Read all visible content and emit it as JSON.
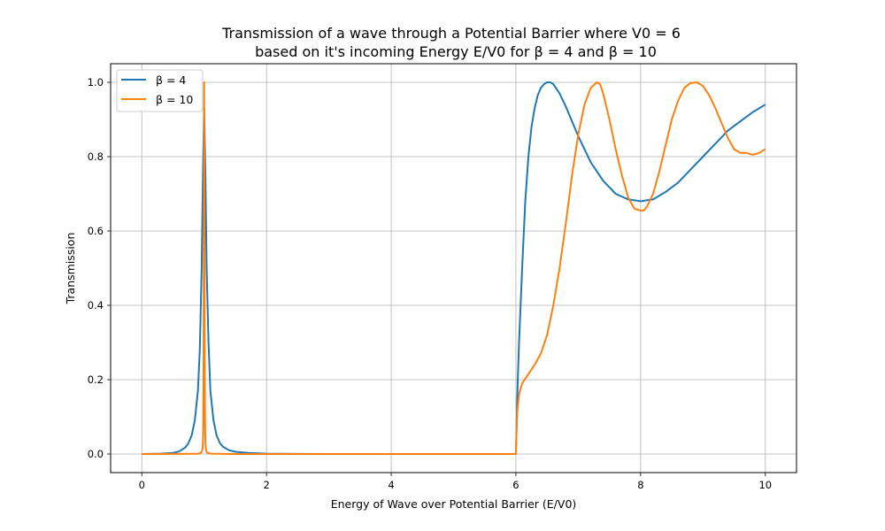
{
  "chart_data": {
    "type": "line",
    "title_line1": "Transmission of a wave through a Potential Barrier where V0 = 6",
    "title_line2": "based on it's incoming Energy E/V0 for β = 4 and β = 10",
    "xlabel": "Energy of Wave over Potential Barrier (E/V0)",
    "ylabel": "Transmission",
    "xlim": [
      -0.5,
      10.5
    ],
    "ylim": [
      -0.05,
      1.05
    ],
    "xticks": [
      0,
      2,
      4,
      6,
      8,
      10
    ],
    "xtick_labels": [
      "0",
      "2",
      "4",
      "6",
      "8",
      "10"
    ],
    "yticks": [
      0.0,
      0.2,
      0.4,
      0.6,
      0.8,
      1.0
    ],
    "ytick_labels": [
      "0.0",
      "0.2",
      "0.4",
      "0.6",
      "0.8",
      "1.0"
    ],
    "grid": true,
    "legend_position": "top-left",
    "series": [
      {
        "name": "β = 4",
        "color": "#1f77b4",
        "x": [
          0,
          0.3,
          0.5,
          0.6,
          0.7,
          0.75,
          0.8,
          0.85,
          0.9,
          0.93,
          0.96,
          0.98,
          1.0,
          1.02,
          1.04,
          1.07,
          1.1,
          1.15,
          1.2,
          1.25,
          1.3,
          1.4,
          1.5,
          1.7,
          2.0,
          2.5,
          3.0,
          6.0,
          6.01,
          6.03,
          6.05,
          6.1,
          6.15,
          6.2,
          6.25,
          6.3,
          6.35,
          6.4,
          6.45,
          6.5,
          6.55,
          6.6,
          6.7,
          6.8,
          6.9,
          7.0,
          7.2,
          7.4,
          7.6,
          7.8,
          8.0,
          8.2,
          8.4,
          8.6,
          8.8,
          9.0,
          9.2,
          9.4,
          9.6,
          9.8,
          10.0
        ],
        "y": [
          0.0,
          0.001,
          0.003,
          0.007,
          0.018,
          0.03,
          0.05,
          0.09,
          0.17,
          0.28,
          0.5,
          0.75,
          0.93,
          0.75,
          0.5,
          0.3,
          0.17,
          0.09,
          0.05,
          0.03,
          0.02,
          0.01,
          0.006,
          0.003,
          0.001,
          0.0003,
          0.0001,
          0.0,
          0.07,
          0.2,
          0.3,
          0.5,
          0.68,
          0.8,
          0.88,
          0.93,
          0.965,
          0.985,
          0.995,
          1.0,
          1.0,
          0.995,
          0.97,
          0.935,
          0.895,
          0.855,
          0.785,
          0.735,
          0.7,
          0.685,
          0.68,
          0.685,
          0.705,
          0.73,
          0.765,
          0.8,
          0.835,
          0.87,
          0.895,
          0.92,
          0.94
        ]
      },
      {
        "name": "β = 10",
        "color": "#ff7f0e",
        "x": [
          0,
          0.9,
          0.95,
          0.97,
          0.98,
          0.985,
          0.99,
          0.995,
          1.0,
          1.005,
          1.01,
          1.015,
          1.02,
          1.03,
          1.05,
          1.1,
          1.5,
          6.0,
          6.01,
          6.02,
          6.05,
          6.1,
          6.2,
          6.3,
          6.4,
          6.5,
          6.6,
          6.7,
          6.8,
          6.9,
          7.0,
          7.1,
          7.2,
          7.3,
          7.35,
          7.4,
          7.5,
          7.6,
          7.7,
          7.8,
          7.9,
          8.0,
          8.05,
          8.1,
          8.2,
          8.3,
          8.4,
          8.5,
          8.6,
          8.7,
          8.8,
          8.9,
          9.0,
          9.1,
          9.2,
          9.3,
          9.4,
          9.5,
          9.6,
          9.7,
          9.8,
          9.9,
          10.0
        ],
        "y": [
          0.0,
          0.0005,
          0.003,
          0.01,
          0.03,
          0.07,
          0.2,
          0.6,
          1.0,
          0.6,
          0.2,
          0.07,
          0.03,
          0.01,
          0.003,
          0.001,
          0.0,
          0.0,
          0.06,
          0.11,
          0.16,
          0.19,
          0.215,
          0.24,
          0.27,
          0.32,
          0.4,
          0.5,
          0.62,
          0.75,
          0.86,
          0.94,
          0.985,
          1.0,
          0.995,
          0.97,
          0.9,
          0.82,
          0.75,
          0.69,
          0.66,
          0.655,
          0.655,
          0.665,
          0.7,
          0.76,
          0.83,
          0.9,
          0.95,
          0.985,
          0.998,
          1.0,
          0.99,
          0.965,
          0.93,
          0.89,
          0.85,
          0.82,
          0.81,
          0.81,
          0.805,
          0.81,
          0.82
        ]
      }
    ]
  }
}
